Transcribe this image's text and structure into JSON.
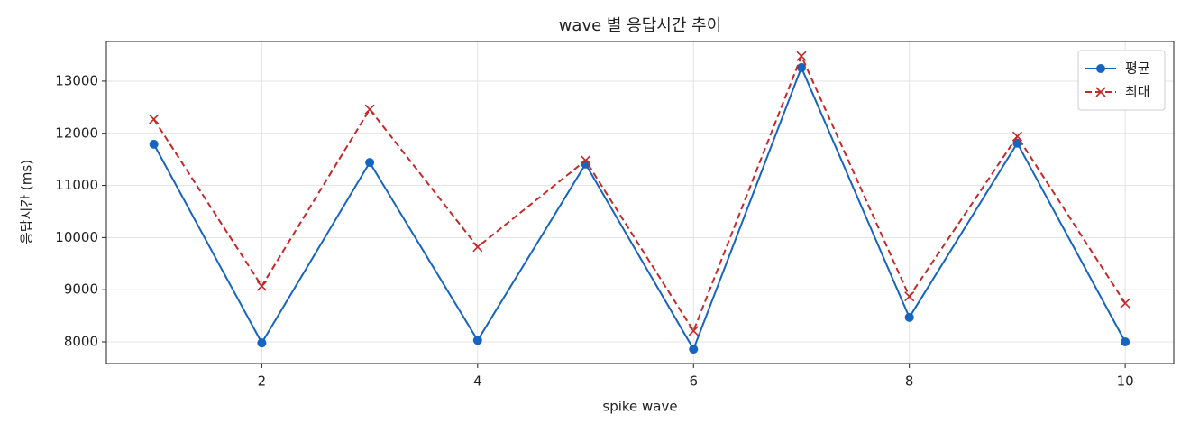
{
  "chart_data": {
    "type": "line",
    "title": "wave 별 응답시간 추이",
    "xlabel": "spike wave",
    "ylabel": "응답시간 (ms)",
    "x": [
      1,
      2,
      3,
      4,
      5,
      6,
      7,
      8,
      9,
      10
    ],
    "series": [
      {
        "name": "평균",
        "color": "#1565c0",
        "linestyle": "solid",
        "marker": "circle",
        "values": [
          11790,
          7980,
          11440,
          8030,
          11410,
          7860,
          13260,
          8470,
          11810,
          8000
        ]
      },
      {
        "name": "최대",
        "color": "#c62828",
        "linestyle": "dashed",
        "marker": "x",
        "values": [
          12270,
          9070,
          12460,
          9820,
          11480,
          8210,
          13480,
          8870,
          11940,
          8740
        ]
      }
    ],
    "xlim": [
      0.56,
      10.45
    ],
    "ylim": [
      7585,
      13760
    ],
    "xticks": [
      2,
      4,
      6,
      8,
      10
    ],
    "yticks": [
      8000,
      9000,
      10000,
      11000,
      12000,
      13000
    ],
    "grid": true,
    "legend": "upper right"
  }
}
